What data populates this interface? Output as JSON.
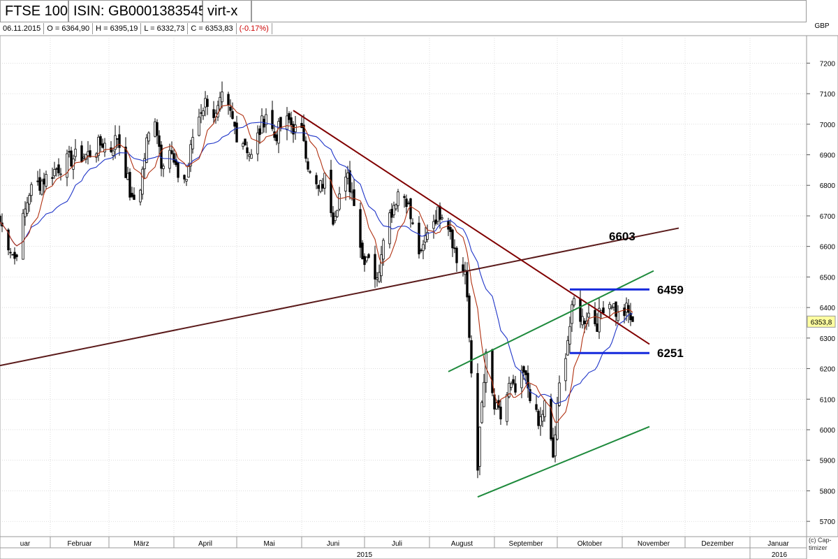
{
  "header": {
    "symbol": "FTSE 100",
    "isin": "ISIN: GB0001383545",
    "exchange": "virt-x",
    "currency": "GBP",
    "date": "06.11.2015",
    "open": "O = 6364,90",
    "high": "H = 6395,19",
    "low": "L = 6332,73",
    "close": "C = 6353,83",
    "change": "(-0.17%)",
    "copyright": "(c) Cap-timizer"
  },
  "colors": {
    "candle": "#000000",
    "ma_short": "#b03010",
    "ma_long": "#1f35c8",
    "trend_down": "#800000",
    "trend_up": "#5a1a1a",
    "channel": "#1e8a3c",
    "levels": "#1428dc",
    "grid": "#c8c8c8",
    "price_box": "#ffffa0"
  },
  "chart_data": {
    "type": "candlestick",
    "title": "FTSE 100",
    "ylabel": "GBP",
    "ylim": [
      5650,
      7290
    ],
    "y_ticks": [
      5700,
      5800,
      5900,
      6000,
      6100,
      6200,
      6300,
      6400,
      6500,
      6600,
      6700,
      6800,
      6900,
      7000,
      7100,
      7200
    ],
    "x_range": [
      "2015-01-08",
      "2016-01-28"
    ],
    "months": [
      {
        "label": "uar",
        "start": "2015-01-01"
      },
      {
        "label": "Februar",
        "start": "2015-02-01"
      },
      {
        "label": "März",
        "start": "2015-03-01"
      },
      {
        "label": "April",
        "start": "2015-04-01"
      },
      {
        "label": "Mai",
        "start": "2015-05-01"
      },
      {
        "label": "Juni",
        "start": "2015-06-01"
      },
      {
        "label": "Juli",
        "start": "2015-07-01"
      },
      {
        "label": "August",
        "start": "2015-08-01"
      },
      {
        "label": "September",
        "start": "2015-09-01"
      },
      {
        "label": "Oktober",
        "start": "2015-10-01"
      },
      {
        "label": "November",
        "start": "2015-11-01"
      },
      {
        "label": "Dezember",
        "start": "2015-12-01"
      },
      {
        "label": "Januar",
        "start": "2016-01-01"
      }
    ],
    "years": [
      {
        "label": "2015",
        "center": "2015-07-01"
      },
      {
        "label": "2016",
        "center": "2016-01-15"
      }
    ],
    "last_price": "6353,8",
    "price_path": [
      [
        "2015-01-08",
        6680
      ],
      [
        "2015-01-15",
        6560
      ],
      [
        "2015-01-22",
        6780
      ],
      [
        "2015-01-29",
        6820
      ],
      [
        "2015-02-05",
        6860
      ],
      [
        "2015-02-12",
        6890
      ],
      [
        "2015-02-19",
        6900
      ],
      [
        "2015-02-26",
        6940
      ],
      [
        "2015-03-02",
        6920
      ],
      [
        "2015-03-05",
        6960
      ],
      [
        "2015-03-09",
        6850
      ],
      [
        "2015-03-12",
        6740
      ],
      [
        "2015-03-16",
        6800
      ],
      [
        "2015-03-19",
        6940
      ],
      [
        "2015-03-23",
        7030
      ],
      [
        "2015-03-26",
        6880
      ],
      [
        "2015-03-30",
        6920
      ],
      [
        "2015-04-02",
        6840
      ],
      [
        "2015-04-07",
        6820
      ],
      [
        "2015-04-10",
        6960
      ],
      [
        "2015-04-14",
        7050
      ],
      [
        "2015-04-17",
        7080
      ],
      [
        "2015-04-21",
        7020
      ],
      [
        "2015-04-24",
        7080
      ],
      [
        "2015-04-28",
        7030
      ],
      [
        "2015-05-01",
        6970
      ],
      [
        "2015-05-05",
        6940
      ],
      [
        "2015-05-08",
        6890
      ],
      [
        "2015-05-12",
        6980
      ],
      [
        "2015-05-15",
        7040
      ],
      [
        "2015-05-19",
        6960
      ],
      [
        "2015-05-22",
        6990
      ],
      [
        "2015-05-26",
        7010
      ],
      [
        "2015-05-29",
        6980
      ],
      [
        "2015-06-02",
        6960
      ],
      [
        "2015-06-05",
        6830
      ],
      [
        "2015-06-09",
        6780
      ],
      [
        "2015-06-12",
        6820
      ],
      [
        "2015-06-16",
        6700
      ],
      [
        "2015-06-19",
        6770
      ],
      [
        "2015-06-23",
        6820
      ],
      [
        "2015-06-26",
        6760
      ],
      [
        "2015-06-30",
        6560
      ],
      [
        "2015-07-03",
        6580
      ],
      [
        "2015-07-07",
        6480
      ],
      [
        "2015-07-10",
        6650
      ],
      [
        "2015-07-14",
        6720
      ],
      [
        "2015-07-17",
        6780
      ],
      [
        "2015-07-21",
        6760
      ],
      [
        "2015-07-24",
        6660
      ],
      [
        "2015-07-28",
        6560
      ],
      [
        "2015-07-31",
        6660
      ],
      [
        "2015-08-04",
        6700
      ],
      [
        "2015-08-07",
        6720
      ],
      [
        "2015-08-11",
        6660
      ],
      [
        "2015-08-14",
        6550
      ],
      [
        "2015-08-18",
        6520
      ],
      [
        "2015-08-21",
        6190
      ],
      [
        "2015-08-24",
        5890
      ],
      [
        "2015-08-26",
        6080
      ],
      [
        "2015-08-28",
        6230
      ],
      [
        "2015-09-01",
        6070
      ],
      [
        "2015-09-04",
        6040
      ],
      [
        "2015-09-08",
        6140
      ],
      [
        "2015-09-11",
        6120
      ],
      [
        "2015-09-15",
        6180
      ],
      [
        "2015-09-18",
        6120
      ],
      [
        "2015-09-22",
        6010
      ],
      [
        "2015-09-25",
        6080
      ],
      [
        "2015-09-29",
        5910
      ],
      [
        "2015-10-02",
        6140
      ],
      [
        "2015-10-06",
        6300
      ],
      [
        "2015-10-09",
        6420
      ],
      [
        "2015-10-13",
        6360
      ],
      [
        "2015-10-16",
        6380
      ],
      [
        "2015-10-20",
        6350
      ],
      [
        "2015-10-23",
        6410
      ],
      [
        "2015-10-27",
        6420
      ],
      [
        "2015-10-30",
        6370
      ],
      [
        "2015-11-03",
        6390
      ],
      [
        "2015-11-06",
        6354
      ]
    ],
    "support_resistance_lines": [
      {
        "label": "6603",
        "from": [
          "2015-01-08",
          6210
        ],
        "to": [
          "2015-11-28",
          6660
        ]
      },
      {
        "label": "",
        "from": [
          "2015-05-28",
          7045
        ],
        "to": [
          "2015-11-14",
          6280
        ]
      }
    ],
    "channel_lines": [
      {
        "from": [
          "2015-08-10",
          6190
        ],
        "to": [
          "2015-11-16",
          6520
        ]
      },
      {
        "from": [
          "2015-08-24",
          5780
        ],
        "to": [
          "2015-11-14",
          6010
        ]
      }
    ],
    "horizontal_levels": [
      {
        "label": "6459",
        "value": 6459,
        "from": "2015-10-07",
        "to": "2015-11-14"
      },
      {
        "label": "6251",
        "value": 6251,
        "from": "2015-10-07",
        "to": "2015-11-14"
      }
    ]
  }
}
